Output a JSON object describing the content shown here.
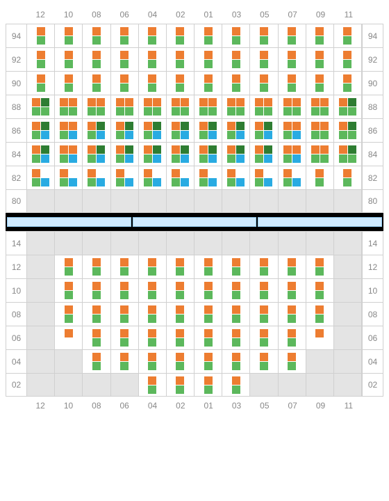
{
  "colors": {
    "orange": "#ed7d31",
    "green": "#5cb85c",
    "darkgreen": "#2e7d32",
    "blue": "#29abe2",
    "empty": "#e4e4e4",
    "grid": "#d0d0d0",
    "label": "#888888",
    "divider_bg": "#000000",
    "divider_seg": "#cfeaff",
    "divider_border": "#8fc8ee"
  },
  "columns": [
    "12",
    "10",
    "08",
    "06",
    "04",
    "02",
    "01",
    "03",
    "05",
    "07",
    "09",
    "11"
  ],
  "upper": {
    "row_labels": [
      "94",
      "92",
      "90",
      "88",
      "86",
      "84",
      "82",
      "80"
    ],
    "rows": [
      [
        [
          "o",
          "g"
        ],
        [
          "o",
          "g"
        ],
        [
          "o",
          "g"
        ],
        [
          "o",
          "g"
        ],
        [
          "o",
          "g"
        ],
        [
          "o",
          "g"
        ],
        [
          "o",
          "g"
        ],
        [
          "o",
          "g"
        ],
        [
          "o",
          "g"
        ],
        [
          "o",
          "g"
        ],
        [
          "o",
          "g"
        ],
        [
          "o",
          "g"
        ]
      ],
      [
        [
          "o",
          "g"
        ],
        [
          "o",
          "g"
        ],
        [
          "o",
          "g"
        ],
        [
          "o",
          "g"
        ],
        [
          "o",
          "g"
        ],
        [
          "o",
          "g"
        ],
        [
          "o",
          "g"
        ],
        [
          "o",
          "g"
        ],
        [
          "o",
          "g"
        ],
        [
          "o",
          "g"
        ],
        [
          "o",
          "g"
        ],
        [
          "o",
          "g"
        ]
      ],
      [
        [
          "o",
          "g"
        ],
        [
          "o",
          "g"
        ],
        [
          "o",
          "g"
        ],
        [
          "o",
          "g"
        ],
        [
          "o",
          "g"
        ],
        [
          "o",
          "g"
        ],
        [
          "o",
          "g"
        ],
        [
          "o",
          "g"
        ],
        [
          "o",
          "g"
        ],
        [
          "o",
          "g"
        ],
        [
          "o",
          "g"
        ],
        [
          "o",
          "g"
        ]
      ],
      [
        [
          "o",
          "g",
          "d",
          "g"
        ],
        [
          "o",
          "g",
          "o",
          "g"
        ],
        [
          "o",
          "g",
          "o",
          "g"
        ],
        [
          "o",
          "g",
          "o",
          "g"
        ],
        [
          "o",
          "g",
          "o",
          "g"
        ],
        [
          "o",
          "g",
          "o",
          "g"
        ],
        [
          "o",
          "g",
          "o",
          "g"
        ],
        [
          "o",
          "g",
          "o",
          "g"
        ],
        [
          "o",
          "g",
          "o",
          "g"
        ],
        [
          "o",
          "g",
          "o",
          "g"
        ],
        [
          "o",
          "g",
          "o",
          "g"
        ],
        [
          "o",
          "g",
          "d",
          "g"
        ]
      ],
      [
        [
          "o",
          "g",
          "d",
          "b"
        ],
        [
          "o",
          "g",
          "o",
          "b"
        ],
        [
          "o",
          "g",
          "d",
          "b"
        ],
        [
          "o",
          "g",
          "d",
          "b"
        ],
        [
          "o",
          "g",
          "d",
          "b"
        ],
        [
          "o",
          "g",
          "d",
          "b"
        ],
        [
          "o",
          "g",
          "d",
          "b"
        ],
        [
          "o",
          "g",
          "d",
          "b"
        ],
        [
          "o",
          "g",
          "d",
          "b"
        ],
        [
          "o",
          "g",
          "o",
          "b"
        ],
        [
          "o",
          "g",
          "o",
          "g"
        ],
        [
          "o",
          "g",
          "d",
          "g"
        ]
      ],
      [
        [
          "o",
          "g",
          "d",
          "b"
        ],
        [
          "o",
          "g",
          "o",
          "b"
        ],
        [
          "o",
          "g",
          "d",
          "b"
        ],
        [
          "o",
          "g",
          "d",
          "b"
        ],
        [
          "o",
          "g",
          "d",
          "b"
        ],
        [
          "o",
          "g",
          "d",
          "b"
        ],
        [
          "o",
          "g",
          "d",
          "b"
        ],
        [
          "o",
          "g",
          "d",
          "b"
        ],
        [
          "o",
          "g",
          "d",
          "b"
        ],
        [
          "o",
          "g",
          "o",
          "b"
        ],
        [
          "o",
          "g",
          "o",
          "g"
        ],
        [
          "o",
          "g",
          "d",
          "g"
        ]
      ],
      [
        [
          "o",
          "g",
          "-",
          "b"
        ],
        [
          "o",
          "g",
          "-",
          "b"
        ],
        [
          "o",
          "g",
          "-",
          "b"
        ],
        [
          "o",
          "g",
          "-",
          "b"
        ],
        [
          "o",
          "g",
          "-",
          "b"
        ],
        [
          "o",
          "g",
          "-",
          "b"
        ],
        [
          "o",
          "g",
          "-",
          "b"
        ],
        [
          "o",
          "g",
          "-",
          "b"
        ],
        [
          "o",
          "g",
          "-",
          "b"
        ],
        [
          "o",
          "g",
          "-",
          "b"
        ],
        [
          "o",
          "g"
        ],
        [
          "o",
          "g"
        ]
      ],
      [
        null,
        null,
        null,
        null,
        null,
        null,
        null,
        null,
        null,
        null,
        null,
        null
      ]
    ]
  },
  "lower": {
    "row_labels": [
      "14",
      "12",
      "10",
      "08",
      "06",
      "04",
      "02"
    ],
    "rows": [
      [
        null,
        null,
        null,
        null,
        null,
        null,
        null,
        null,
        null,
        null,
        null,
        null
      ],
      [
        null,
        [
          "o",
          "g"
        ],
        [
          "o",
          "g"
        ],
        [
          "o",
          "g"
        ],
        [
          "o",
          "g"
        ],
        [
          "o",
          "g"
        ],
        [
          "o",
          "g"
        ],
        [
          "o",
          "g"
        ],
        [
          "o",
          "g"
        ],
        [
          "o",
          "g"
        ],
        [
          "o",
          "g"
        ],
        null
      ],
      [
        null,
        [
          "o",
          "g"
        ],
        [
          "o",
          "g"
        ],
        [
          "o",
          "g"
        ],
        [
          "o",
          "g"
        ],
        [
          "o",
          "g"
        ],
        [
          "o",
          "g"
        ],
        [
          "o",
          "g"
        ],
        [
          "o",
          "g"
        ],
        [
          "o",
          "g"
        ],
        [
          "o",
          "g"
        ],
        null
      ],
      [
        null,
        [
          "o",
          "g"
        ],
        [
          "o",
          "g"
        ],
        [
          "o",
          "g"
        ],
        [
          "o",
          "g"
        ],
        [
          "o",
          "g"
        ],
        [
          "o",
          "g"
        ],
        [
          "o",
          "g"
        ],
        [
          "o",
          "g"
        ],
        [
          "o",
          "g"
        ],
        [
          "o",
          "g"
        ],
        null
      ],
      [
        null,
        [
          "o",
          "-"
        ],
        [
          "o",
          "g"
        ],
        [
          "o",
          "g"
        ],
        [
          "o",
          "g"
        ],
        [
          "o",
          "g"
        ],
        [
          "o",
          "g"
        ],
        [
          "o",
          "g"
        ],
        [
          "o",
          "g"
        ],
        [
          "o",
          "g"
        ],
        [
          "o",
          "-"
        ],
        null
      ],
      [
        null,
        null,
        [
          "o",
          "g"
        ],
        [
          "o",
          "g"
        ],
        [
          "o",
          "g"
        ],
        [
          "o",
          "g"
        ],
        [
          "o",
          "g"
        ],
        [
          "o",
          "g"
        ],
        [
          "o",
          "g"
        ],
        [
          "o",
          "g"
        ],
        null,
        null
      ],
      [
        null,
        null,
        null,
        null,
        [
          "o",
          "g"
        ],
        [
          "o",
          "g"
        ],
        [
          "o",
          "g"
        ],
        [
          "o",
          "g"
        ],
        null,
        null,
        null,
        null
      ]
    ]
  },
  "divider_segments": 3
}
